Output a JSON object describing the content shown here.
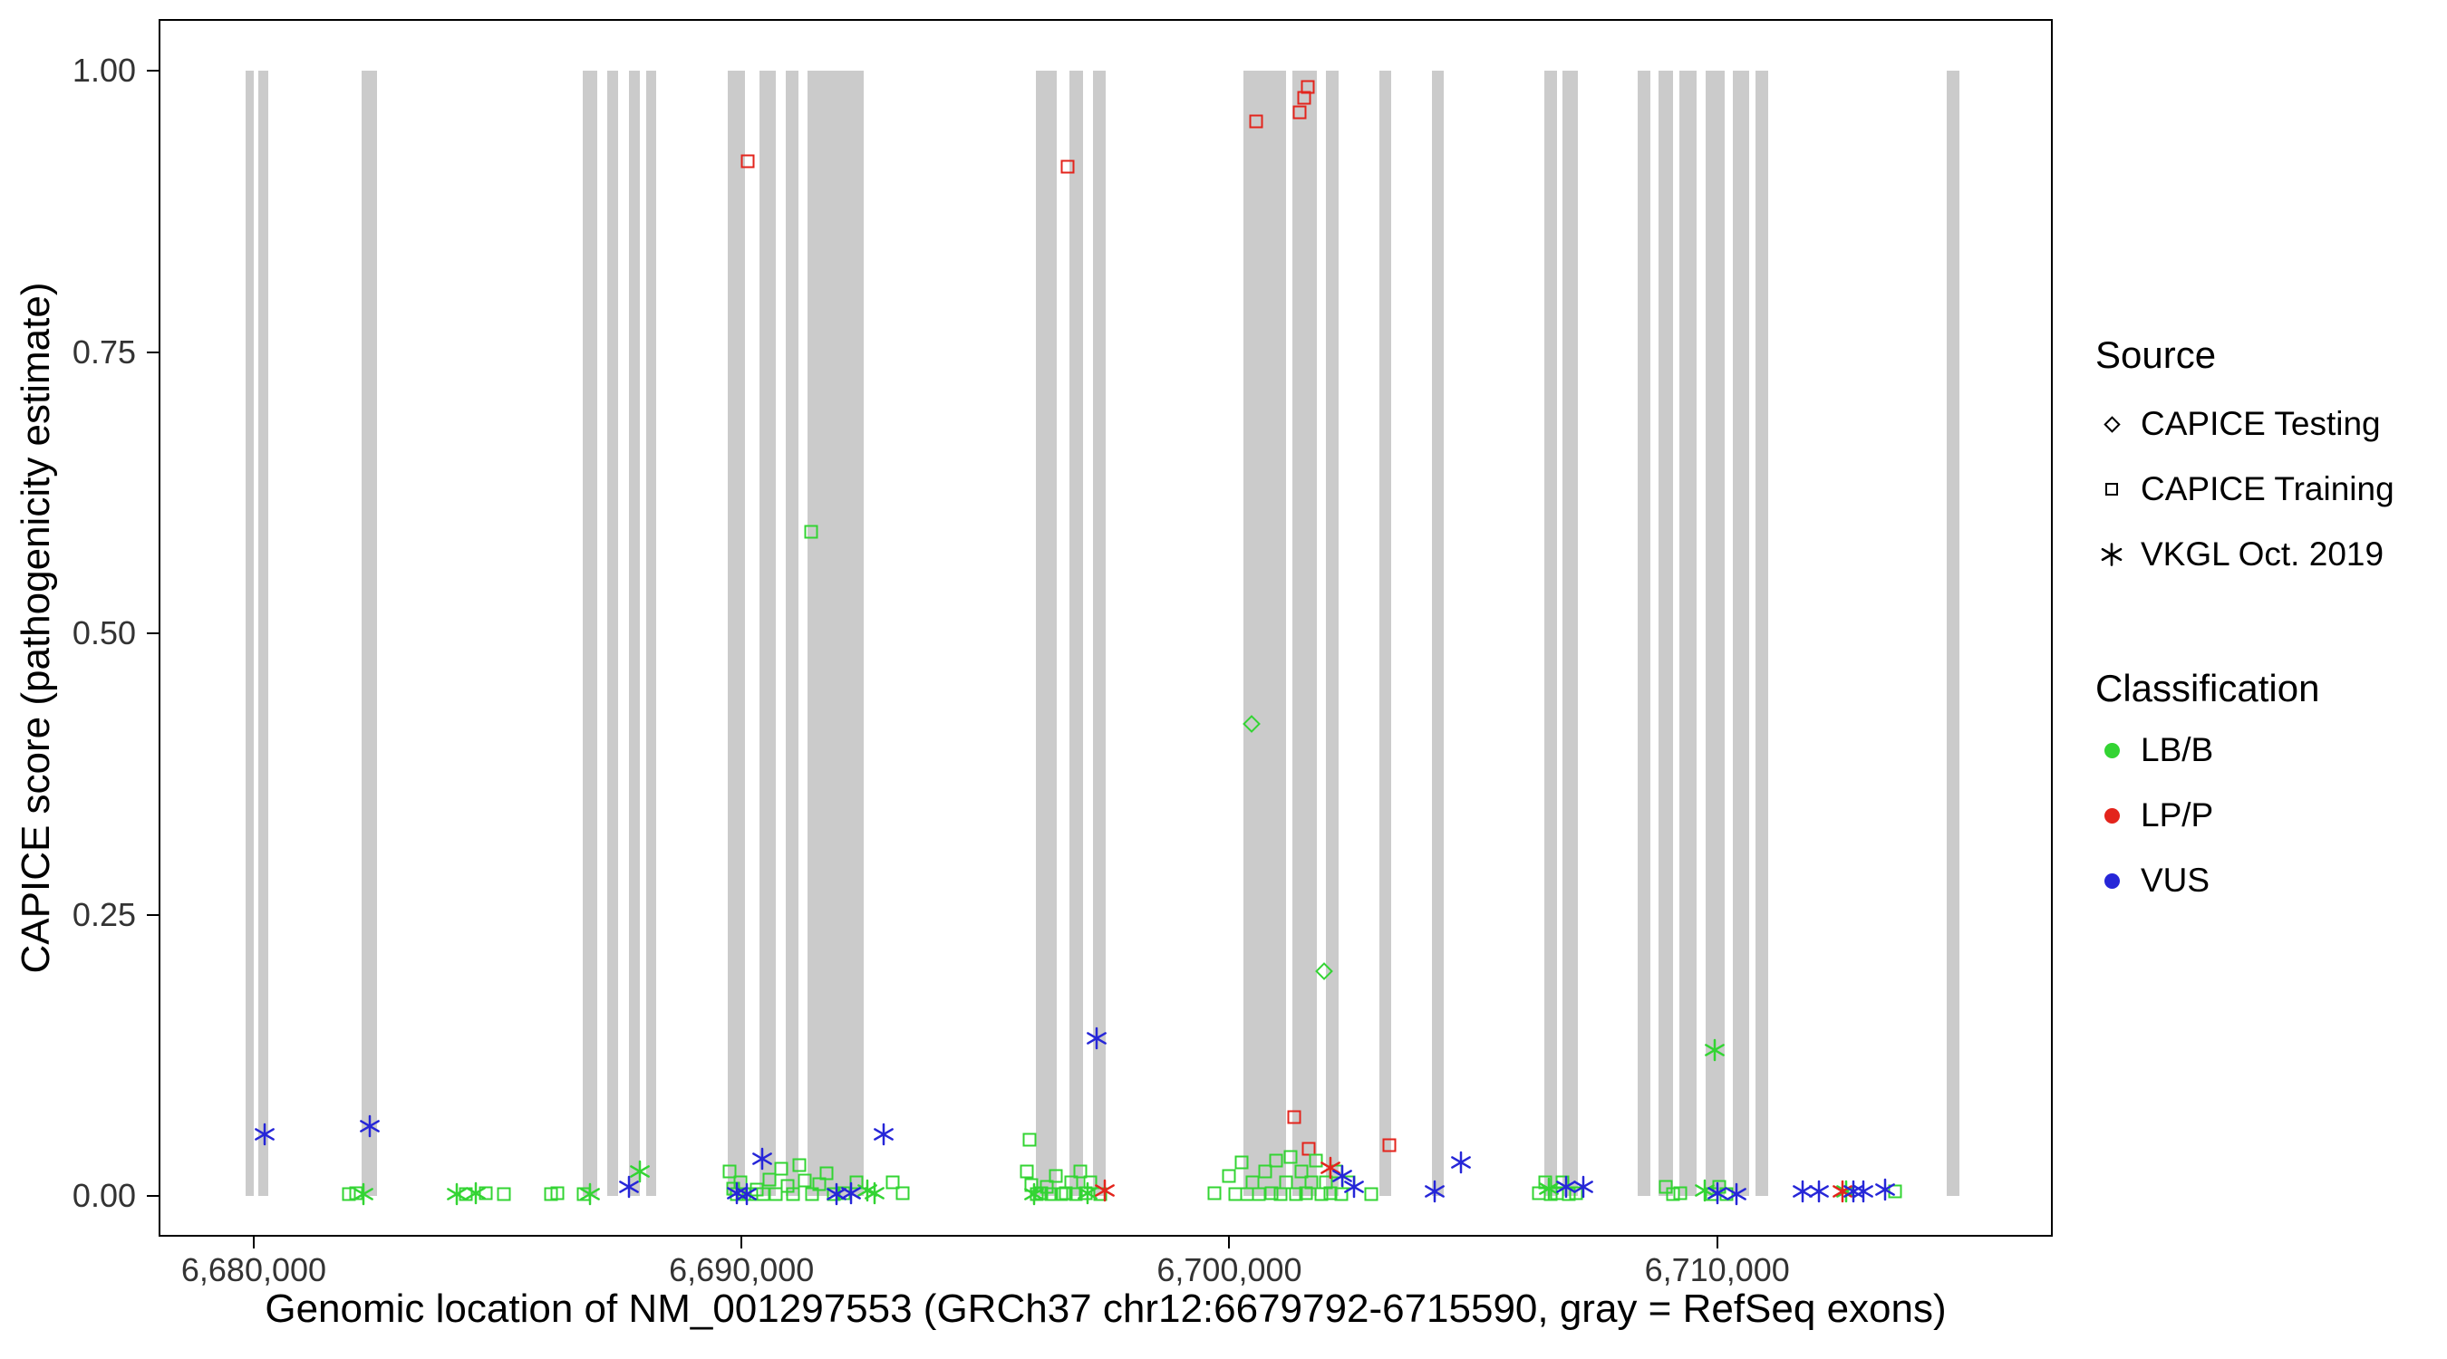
{
  "chart_data": {
    "type": "scatter",
    "title": "",
    "xlabel": "Genomic location of NM_001297553 (GRCh37 chr12:6679792-6715590, gray = RefSeq exons)",
    "ylabel": "CAPICE score (pathogenicity estimate)",
    "xlim": [
      6678050,
      6716880
    ],
    "ylim": [
      -0.036,
      1.046
    ],
    "grid": "off",
    "legend_position": "right",
    "exon_color": "#CBCBCB",
    "classification_colors": {
      "LB/B": "#33D433",
      "LP/P": "#E3241C",
      "VUS": "#2626D8"
    },
    "xticks": [
      {
        "value": 6680000,
        "label": "6,680,000"
      },
      {
        "value": 6690000,
        "label": "6,690,000"
      },
      {
        "value": 6700000,
        "label": "6,700,000"
      },
      {
        "value": 6710000,
        "label": "6,710,000"
      }
    ],
    "yticks": [
      {
        "value": 0,
        "label": "0.00"
      },
      {
        "value": 0.25,
        "label": "0.25"
      },
      {
        "value": 0.5,
        "label": "0.50"
      },
      {
        "value": 0.75,
        "label": "0.75"
      },
      {
        "value": 1,
        "label": "1.00"
      }
    ],
    "exons": [
      [
        6679840,
        6680000
      ],
      [
        6680100,
        6680290
      ],
      [
        6682210,
        6682530
      ],
      [
        6686750,
        6687050
      ],
      [
        6687240,
        6687470
      ],
      [
        6687700,
        6687920
      ],
      [
        6688050,
        6688250
      ],
      [
        6689710,
        6690070
      ],
      [
        6690360,
        6690710
      ],
      [
        6690910,
        6691170
      ],
      [
        6691360,
        6692500
      ],
      [
        6696040,
        6696460
      ],
      [
        6696720,
        6697010
      ],
      [
        6697210,
        6697470
      ],
      [
        6700290,
        6701170
      ],
      [
        6701300,
        6701790
      ],
      [
        6701980,
        6702240
      ],
      [
        6703080,
        6703310
      ],
      [
        6704160,
        6704390
      ],
      [
        6706460,
        6706720
      ],
      [
        6706820,
        6707140
      ],
      [
        6708380,
        6708640
      ],
      [
        6708800,
        6709090
      ],
      [
        6709220,
        6709580
      ],
      [
        6709770,
        6710160
      ],
      [
        6710320,
        6710650
      ],
      [
        6710780,
        6711040
      ],
      [
        6714710,
        6714970
      ]
    ],
    "series": [
      {
        "source": "CAPICE Testing",
        "marker": "diamond",
        "classification": "LB/B",
        "points": [
          [
            6700460,
            0.42
          ],
          [
            6701950,
            0.2
          ]
        ]
      },
      {
        "source": "CAPICE Training",
        "marker": "square",
        "classification": "LP/P",
        "points": [
          [
            6690130,
            0.92
          ],
          [
            6696690,
            0.915
          ],
          [
            6700550,
            0.955
          ],
          [
            6701450,
            0.963
          ],
          [
            6701530,
            0.976
          ],
          [
            6701600,
            0.986
          ],
          [
            6701330,
            0.07
          ],
          [
            6701620,
            0.042
          ],
          [
            6703280,
            0.045
          ]
        ]
      },
      {
        "source": "CAPICE Training",
        "marker": "square",
        "classification": "LB/B",
        "points": [
          [
            6681950,
            0.002
          ],
          [
            6682100,
            0.003
          ],
          [
            6684350,
            0.002
          ],
          [
            6684750,
            0.003
          ],
          [
            6685130,
            0.002
          ],
          [
            6686100,
            0.002
          ],
          [
            6686230,
            0.003
          ],
          [
            6686760,
            0.002
          ],
          [
            6689750,
            0.022
          ],
          [
            6689820,
            0.007
          ],
          [
            6689900,
            0.002
          ],
          [
            6689980,
            0.012
          ],
          [
            6690060,
            0.002
          ],
          [
            6690200,
            0.002
          ],
          [
            6690320,
            0.006
          ],
          [
            6690450,
            0.002
          ],
          [
            6690570,
            0.015
          ],
          [
            6690700,
            0.002
          ],
          [
            6690820,
            0.024
          ],
          [
            6690940,
            0.009
          ],
          [
            6691060,
            0.002
          ],
          [
            6691180,
            0.028
          ],
          [
            6691300,
            0.014
          ],
          [
            6691430,
            0.59
          ],
          [
            6691450,
            0.002
          ],
          [
            6691600,
            0.011
          ],
          [
            6691750,
            0.02
          ],
          [
            6691900,
            0.002
          ],
          [
            6692100,
            0.003
          ],
          [
            6692350,
            0.012
          ],
          [
            6693100,
            0.012
          ],
          [
            6693300,
            0.003
          ],
          [
            6695850,
            0.022
          ],
          [
            6695900,
            0.05
          ],
          [
            6695950,
            0.01
          ],
          [
            6696050,
            0.002
          ],
          [
            6696150,
            0.003
          ],
          [
            6696250,
            0.008
          ],
          [
            6696350,
            0.002
          ],
          [
            6696450,
            0.018
          ],
          [
            6696550,
            0.002
          ],
          [
            6696650,
            0.003
          ],
          [
            6696750,
            0.012
          ],
          [
            6696850,
            0.002
          ],
          [
            6696950,
            0.022
          ],
          [
            6697050,
            0.003
          ],
          [
            6697150,
            0.012
          ],
          [
            6697350,
            0.002
          ],
          [
            6699700,
            0.003
          ],
          [
            6700000,
            0.018
          ],
          [
            6700120,
            0.002
          ],
          [
            6700250,
            0.03
          ],
          [
            6700370,
            0.002
          ],
          [
            6700470,
            0.012
          ],
          [
            6700600,
            0.002
          ],
          [
            6700740,
            0.022
          ],
          [
            6700860,
            0.003
          ],
          [
            6700960,
            0.032
          ],
          [
            6701060,
            0.002
          ],
          [
            6701160,
            0.012
          ],
          [
            6701260,
            0.035
          ],
          [
            6701360,
            0.002
          ],
          [
            6701470,
            0.022
          ],
          [
            6701570,
            0.003
          ],
          [
            6701680,
            0.012
          ],
          [
            6701780,
            0.032
          ],
          [
            6701880,
            0.002
          ],
          [
            6701980,
            0.012
          ],
          [
            6702080,
            0.003
          ],
          [
            6702180,
            0.022
          ],
          [
            6702300,
            0.002
          ],
          [
            6702450,
            0.012
          ],
          [
            6702900,
            0.002
          ],
          [
            6706350,
            0.003
          ],
          [
            6706470,
            0.012
          ],
          [
            6706590,
            0.002
          ],
          [
            6706710,
            0.003
          ],
          [
            6706830,
            0.012
          ],
          [
            6706950,
            0.002
          ],
          [
            6707100,
            0.003
          ],
          [
            6708950,
            0.008
          ],
          [
            6709100,
            0.002
          ],
          [
            6709250,
            0.003
          ],
          [
            6709900,
            0.002
          ],
          [
            6710050,
            0.008
          ],
          [
            6710200,
            0.002
          ],
          [
            6713640,
            0.004
          ]
        ]
      },
      {
        "source": "VKGL Oct. 2019",
        "marker": "asterisk",
        "classification": "LB/B",
        "points": [
          [
            6682250,
            0.002
          ],
          [
            6684160,
            0.002
          ],
          [
            6684550,
            0.003
          ],
          [
            6686890,
            0.002
          ],
          [
            6687920,
            0.022
          ],
          [
            6692580,
            0.005
          ],
          [
            6692720,
            0.003
          ],
          [
            6696000,
            0.002
          ],
          [
            6697100,
            0.003
          ],
          [
            6706550,
            0.007
          ],
          [
            6709750,
            0.005
          ],
          [
            6709950,
            0.13
          ],
          [
            6712650,
            0.004
          ]
        ]
      },
      {
        "source": "VKGL Oct. 2019",
        "marker": "asterisk",
        "classification": "LP/P",
        "points": [
          [
            6697440,
            0.005
          ],
          [
            6702080,
            0.025
          ],
          [
            6712570,
            0.004
          ]
        ]
      },
      {
        "source": "VKGL Oct. 2019",
        "marker": "asterisk",
        "classification": "VUS",
        "points": [
          [
            6680230,
            0.055
          ],
          [
            6682370,
            0.062
          ],
          [
            6687700,
            0.008
          ],
          [
            6689900,
            0.003
          ],
          [
            6690100,
            0.002
          ],
          [
            6690420,
            0.033
          ],
          [
            6691950,
            0.002
          ],
          [
            6692250,
            0.003
          ],
          [
            6692920,
            0.055
          ],
          [
            6697280,
            0.14
          ],
          [
            6702310,
            0.018
          ],
          [
            6702550,
            0.008
          ],
          [
            6704200,
            0.004
          ],
          [
            6704750,
            0.03
          ],
          [
            6706900,
            0.008
          ],
          [
            6707250,
            0.008
          ],
          [
            6710000,
            0.003
          ],
          [
            6710400,
            0.002
          ],
          [
            6711750,
            0.004
          ],
          [
            6712080,
            0.004
          ],
          [
            6712790,
            0.004
          ],
          [
            6712990,
            0.004
          ],
          [
            6713440,
            0.006
          ]
        ]
      }
    ]
  },
  "legend": {
    "source": {
      "title": "Source",
      "items": [
        {
          "label": "CAPICE Testing",
          "marker": "diamond"
        },
        {
          "label": "CAPICE Training",
          "marker": "square"
        },
        {
          "label": "VKGL Oct. 2019",
          "marker": "asterisk"
        }
      ]
    },
    "classification": {
      "title": "Classification",
      "items": [
        {
          "label": "LB/B",
          "color": "#33D433"
        },
        {
          "label": "LP/P",
          "color": "#E3241C"
        },
        {
          "label": "VUS",
          "color": "#2626D8"
        }
      ]
    }
  }
}
